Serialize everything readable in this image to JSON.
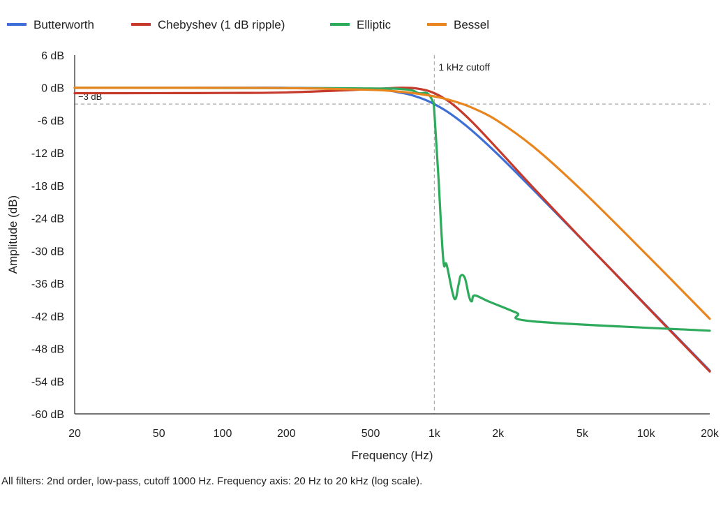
{
  "chart_data": {
    "type": "line",
    "xlabel": "Frequency (Hz)",
    "ylabel": "Amplitude (dB)",
    "xscale": "log",
    "xlim": [
      20,
      20000
    ],
    "ylim": [
      -60,
      6
    ],
    "grid": false,
    "legend_position": "top",
    "x_ticks": [
      20,
      50,
      100,
      200,
      500,
      1000,
      2000,
      5000,
      10000,
      20000
    ],
    "x_tick_labels": [
      "20",
      "50",
      "100",
      "200",
      "500",
      "1k",
      "2k",
      "5k",
      "10k",
      "20k"
    ],
    "y_ticks": [
      6,
      0,
      -6,
      -12,
      -18,
      -24,
      -30,
      -36,
      -42,
      -48,
      -54,
      -60
    ],
    "y_tick_labels": [
      "6 dB",
      "0 dB",
      "-6 dB",
      "-12 dB",
      "-18 dB",
      "-24 dB",
      "-30 dB",
      "-36 dB",
      "-42 dB",
      "-48 dB",
      "-54 dB",
      "-60 dB"
    ],
    "annotations": {
      "cutoff": {
        "x": 1000,
        "label": "1 kHz cutoff"
      },
      "minus3": {
        "y": -3,
        "label": "−3 dB"
      }
    },
    "series": [
      {
        "name": "Butterworth",
        "color": "#3d6fd6",
        "x": [
          20,
          50,
          100,
          200,
          500,
          700,
          850,
          1000,
          1200,
          1500,
          2000,
          3000,
          5000,
          10000,
          20000
        ],
        "y": [
          0,
          0,
          0,
          -0.01,
          -0.26,
          -0.94,
          -1.82,
          -3.01,
          -4.88,
          -7.83,
          -12.3,
          -19.14,
          -27.96,
          -40.0,
          -52.04
        ]
      },
      {
        "name": "Chebyshev (1 dB ripple)",
        "color": "#c63a2c",
        "x": [
          20,
          50,
          100,
          200,
          500,
          700,
          850,
          1000,
          1200,
          1500,
          2000,
          3000,
          5000,
          10000,
          20000
        ],
        "y": [
          -1.0,
          -0.99,
          -0.96,
          -0.86,
          -0.27,
          0,
          -0.22,
          -1.0,
          -2.82,
          -6.2,
          -11.36,
          -18.8,
          -27.94,
          -40.1,
          -52.2
        ]
      },
      {
        "name": "Elliptic",
        "color": "#2eaa5c",
        "x": [
          20,
          400,
          725,
          844,
          925,
          982,
          1000,
          1044,
          1102,
          1144,
          1243,
          1302,
          1332,
          1394,
          1459,
          1503,
          1550,
          1803,
          2444,
          2978,
          20000
        ],
        "y": [
          0,
          -0.1,
          -0.3,
          -1.0,
          -1.0,
          -2.5,
          -4.4,
          -16,
          -31.6,
          -32.6,
          -38.8,
          -36.2,
          -34.6,
          -35.0,
          -38.4,
          -39.3,
          -38.2,
          -39.3,
          -41.4,
          -43.0,
          -44.7
        ]
      },
      {
        "name": "Bessel",
        "color": "#e8851f",
        "x": [
          20,
          50,
          100,
          200,
          500,
          700,
          850,
          1000,
          1200,
          1500,
          2000,
          3000,
          5000,
          10000,
          20000
        ],
        "y": [
          0,
          0,
          -0.01,
          -0.06,
          -0.38,
          -0.76,
          -1.14,
          -1.6,
          -2.33,
          -3.64,
          -6.14,
          -11.14,
          -18.96,
          -30.59,
          -42.5
        ]
      }
    ]
  },
  "caption": "All filters: 2nd order, low-pass, cutoff 1000 Hz. Frequency axis: 20 Hz to 20 kHz (log scale)."
}
